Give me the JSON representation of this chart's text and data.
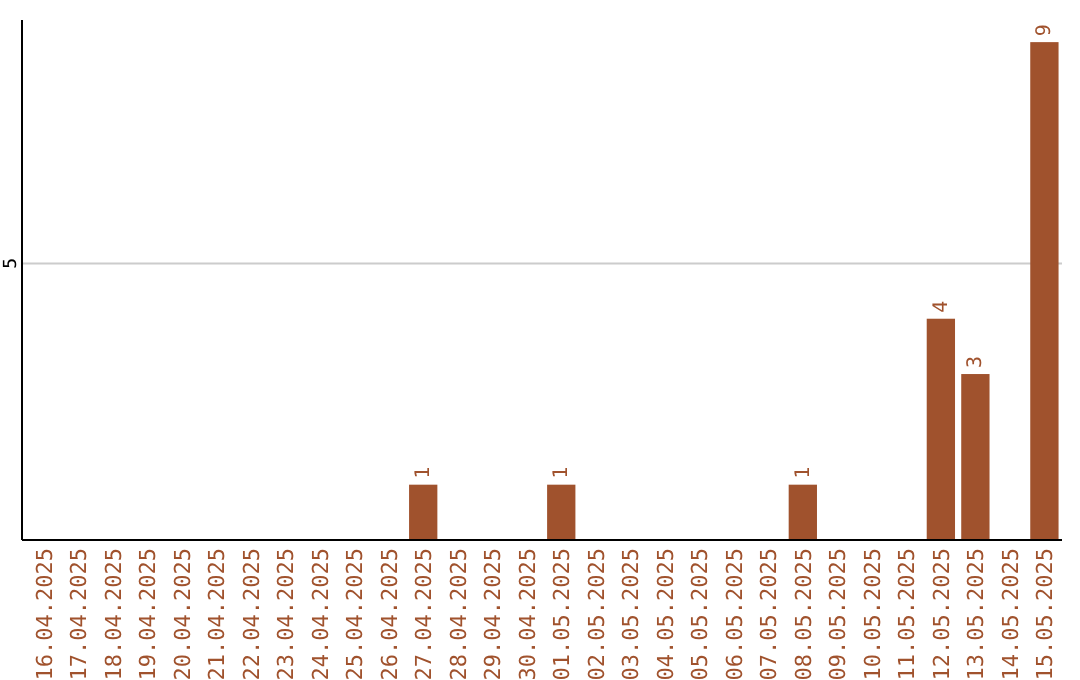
{
  "chart_data": {
    "type": "bar",
    "categories": [
      "16.04.2025",
      "17.04.2025",
      "18.04.2025",
      "19.04.2025",
      "20.04.2025",
      "21.04.2025",
      "22.04.2025",
      "23.04.2025",
      "24.04.2025",
      "25.04.2025",
      "26.04.2025",
      "27.04.2025",
      "28.04.2025",
      "29.04.2025",
      "30.04.2025",
      "01.05.2025",
      "02.05.2025",
      "03.05.2025",
      "04.05.2025",
      "05.05.2025",
      "06.05.2025",
      "07.05.2025",
      "08.05.2025",
      "09.05.2025",
      "10.05.2025",
      "11.05.2025",
      "12.05.2025",
      "13.05.2025",
      "14.05.2025",
      "15.05.2025"
    ],
    "values": [
      0,
      0,
      0,
      0,
      0,
      0,
      0,
      0,
      0,
      0,
      0,
      1,
      0,
      0,
      0,
      1,
      0,
      0,
      0,
      0,
      0,
      0,
      1,
      0,
      0,
      0,
      4,
      3,
      0,
      9
    ],
    "value_labels": [
      null,
      null,
      null,
      null,
      null,
      null,
      null,
      null,
      null,
      null,
      null,
      "1",
      null,
      null,
      null,
      "1",
      null,
      null,
      null,
      null,
      null,
      null,
      "1",
      null,
      null,
      null,
      "4",
      "3",
      null,
      "9"
    ],
    "color": "#a0522d",
    "ylim": [
      0,
      9.4
    ],
    "yticks": [
      5
    ],
    "grid": "y"
  }
}
